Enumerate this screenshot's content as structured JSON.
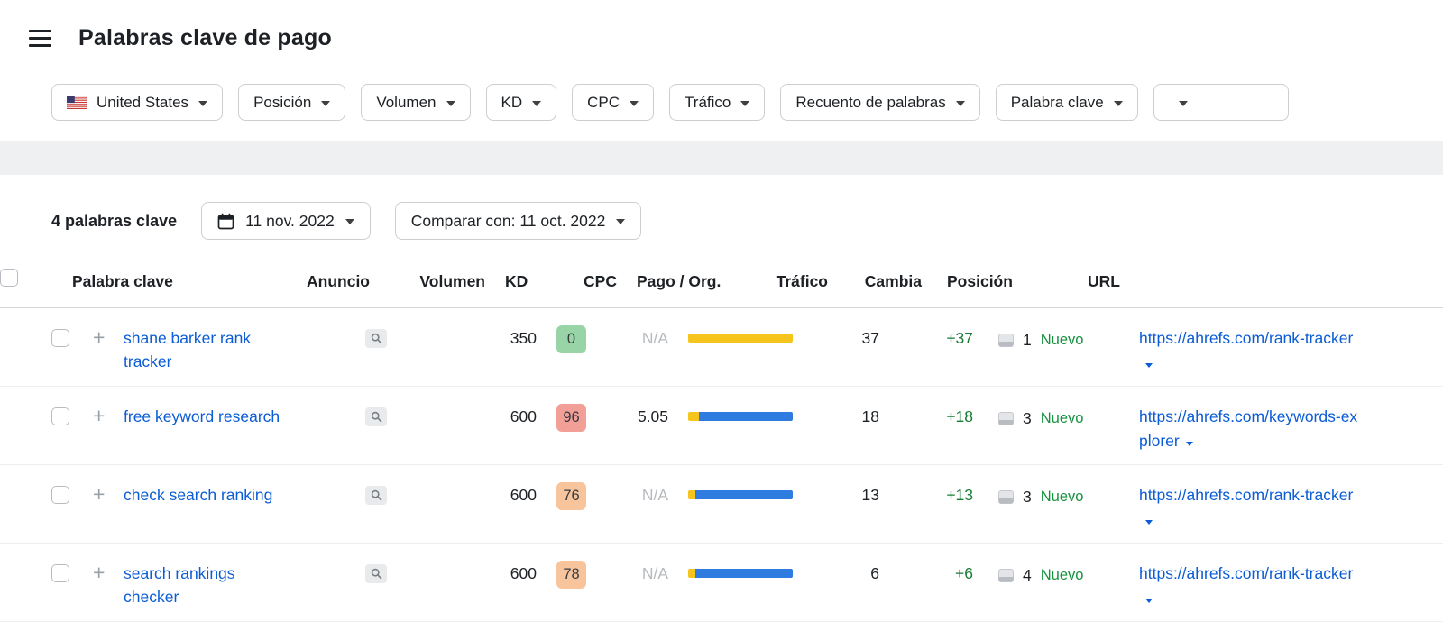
{
  "colors": {
    "link_blue": "#0b5cd5",
    "positive_green": "#177c36",
    "new_green": "#179240",
    "paid_yellow": "#f5c51d",
    "organic_blue": "#2e7ce0",
    "muted_gray": "#b6b9bd"
  },
  "icons": {
    "add_plus": "+"
  },
  "header": {
    "title": "Palabras clave de pago"
  },
  "filters": {
    "country": {
      "label": "United States"
    },
    "items": [
      {
        "label": "Posición"
      },
      {
        "label": "Volumen"
      },
      {
        "label": "KD"
      },
      {
        "label": "CPC"
      },
      {
        "label": "Tráfico"
      },
      {
        "label": "Recuento de palabras"
      },
      {
        "label": "Palabra clave"
      },
      {
        "label": ""
      }
    ]
  },
  "toolbar": {
    "count": "4 palabras clave",
    "date": "11 nov. 2022",
    "compare": "Comparar con: 11 oct. 2022"
  },
  "table": {
    "columns": {
      "keyword": "Palabra clave",
      "ad": "Anuncio",
      "volume": "Volumen",
      "kd": "KD",
      "cpc": "CPC",
      "paid_org": "Pago / Org.",
      "traffic": "Tráfico",
      "change": "Cambia",
      "position": "Posición",
      "url": "URL"
    },
    "rows": [
      {
        "keyword": "shane barker rank tracker",
        "volume": "350",
        "kd": "0",
        "kd_color": "#98d4a5",
        "cpc": "N/A",
        "paid_pct": 100,
        "org_pct": 0,
        "traffic": "37",
        "change": "+37",
        "position": "1",
        "badge": "Nuevo",
        "url": "https://ahrefs.com/rank-tracker"
      },
      {
        "keyword": "free keyword research",
        "volume": "600",
        "kd": "96",
        "kd_color": "#f29f98",
        "cpc": "5.05",
        "paid_pct": 10,
        "org_pct": 90,
        "traffic": "18",
        "change": "+18",
        "position": "3",
        "badge": "Nuevo",
        "url": "https://ahrefs.com/keywords-explorer"
      },
      {
        "keyword": "check search ranking",
        "volume": "600",
        "kd": "76",
        "kd_color": "#f8c49c",
        "cpc": "N/A",
        "paid_pct": 7,
        "org_pct": 93,
        "traffic": "13",
        "change": "+13",
        "position": "3",
        "badge": "Nuevo",
        "url": "https://ahrefs.com/rank-tracker"
      },
      {
        "keyword": "search rankings checker",
        "volume": "600",
        "kd": "78",
        "kd_color": "#f8c49c",
        "cpc": "N/A",
        "paid_pct": 7,
        "org_pct": 93,
        "traffic": "6",
        "change": "+6",
        "position": "4",
        "badge": "Nuevo",
        "url": "https://ahrefs.com/rank-tracker"
      }
    ]
  }
}
